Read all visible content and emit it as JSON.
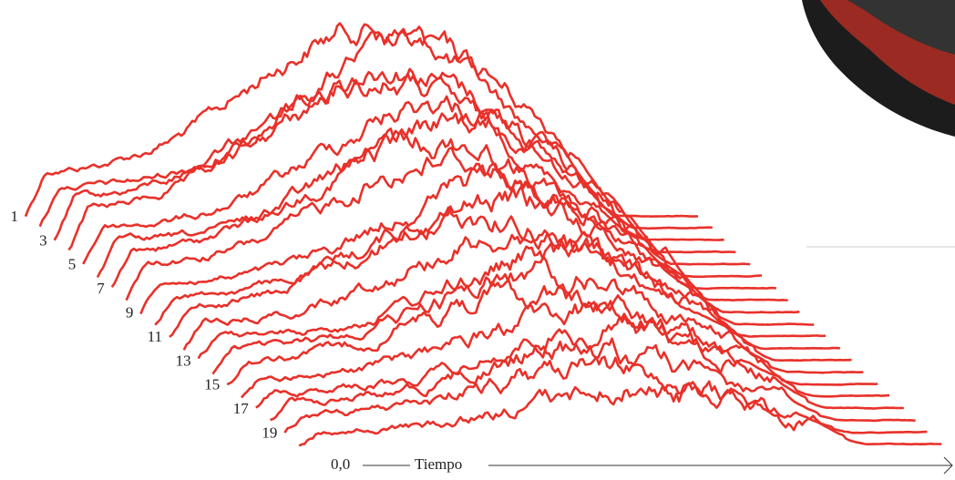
{
  "series_labels": [
    "1",
    "3",
    "5",
    "7",
    "9",
    "11",
    "13",
    "15",
    "17",
    "19"
  ],
  "origin_label": "0,0",
  "axis_label": "Tiempo"
}
